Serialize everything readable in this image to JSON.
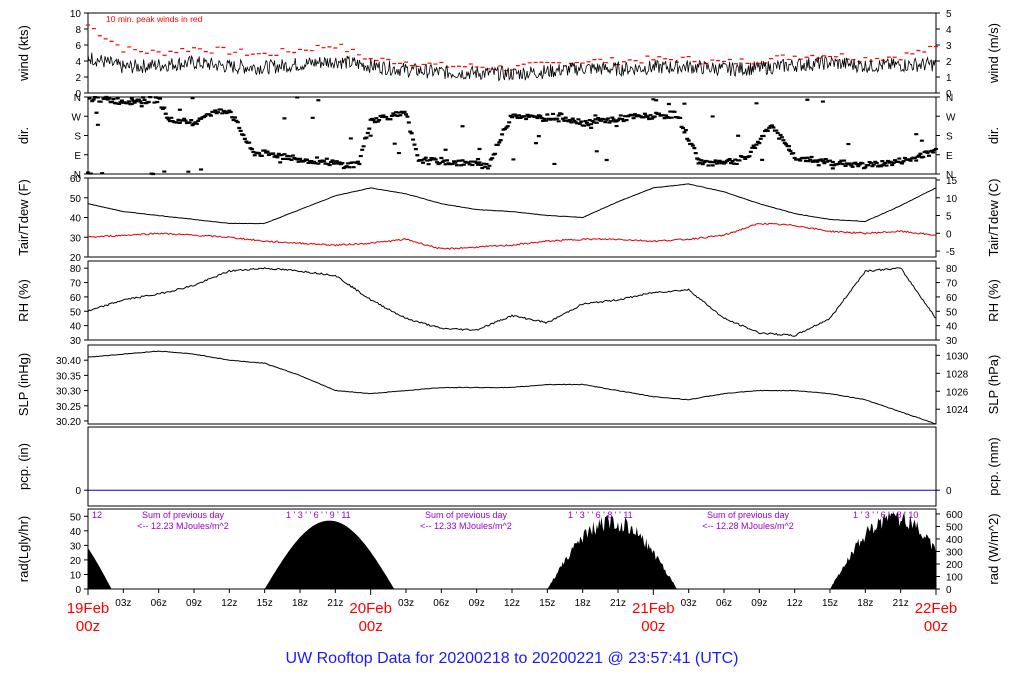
{
  "title": "UW Rooftop Data for 20200218  to  20200221 @ 23:57:41  (UTC)",
  "colors": {
    "peak": "#ff0000",
    "dew": "#e00000",
    "precip": "#0000cc",
    "purple": "#9900cc",
    "axisRed": "#ff0000",
    "title": "#1a1aff"
  },
  "x_axis": {
    "hour_ticks": [
      "03z",
      "06z",
      "09z",
      "12z",
      "15z",
      "18z",
      "21z"
    ],
    "day_labels": [
      {
        "date": "19Feb",
        "hour": "00z"
      },
      {
        "date": "20Feb",
        "hour": "00z"
      },
      {
        "date": "21Feb",
        "hour": "00z"
      },
      {
        "date": "22Feb",
        "hour": "00z"
      }
    ]
  },
  "chart_data": [
    {
      "type": "line",
      "panel": "wind",
      "ylabel_left": "wind (kts)",
      "ylabel_right": "wind (m/s)",
      "left_ticks": [
        "0",
        "2",
        "4",
        "6",
        "8",
        "10"
      ],
      "right_ticks": [
        "0",
        "1",
        "2",
        "3",
        "4",
        "5"
      ],
      "ylim": [
        0,
        10
      ],
      "annotation": "10 min. peak winds in red",
      "series": [
        {
          "x": [
            0,
            3,
            6,
            9,
            12,
            15,
            18,
            21,
            24,
            27,
            30,
            33,
            36,
            39,
            42,
            45,
            48,
            51,
            54,
            57,
            60,
            63,
            66,
            69,
            72
          ],
          "y": [
            4.5,
            3.2,
            3.5,
            3.8,
            3.3,
            3.2,
            3.6,
            4.0,
            3.4,
            2.9,
            2.6,
            2.5,
            2.4,
            2.7,
            3.1,
            3.0,
            3.2,
            3.3,
            3.0,
            3.1,
            3.5,
            3.8,
            3.4,
            3.5,
            3.6
          ]
        },
        {
          "x": [
            0,
            3,
            6,
            9,
            12,
            15,
            18,
            21,
            24,
            27,
            30,
            33,
            36,
            39,
            42,
            45,
            48,
            51,
            54,
            57,
            60,
            63,
            66,
            69,
            72
          ],
          "y": [
            8.5,
            5.5,
            5.0,
            5.6,
            5.2,
            4.8,
            5.4,
            6.0,
            4.2,
            3.9,
            3.4,
            3.3,
            3.1,
            3.6,
            4.0,
            4.0,
            4.2,
            4.2,
            3.8,
            4.1,
            4.6,
            4.8,
            4.3,
            4.6,
            5.6
          ]
        }
      ]
    },
    {
      "type": "scatter",
      "panel": "dir",
      "ylabel_left": "dir.",
      "ylabel_right": "dir.",
      "left_ticks": [
        "N",
        "E",
        "S",
        "W",
        "N"
      ],
      "right_ticks": [
        "N",
        "E",
        "S",
        "W",
        "N"
      ],
      "ylim": [
        0,
        360
      ],
      "x": [
        0,
        3,
        5,
        6,
        7,
        9,
        10,
        12,
        14,
        16,
        18,
        20,
        22,
        23,
        24,
        25,
        27,
        28,
        29,
        30,
        32,
        34,
        36,
        38,
        40,
        42,
        44,
        46,
        48,
        50,
        52,
        54,
        55,
        56,
        58,
        60,
        62,
        64,
        66,
        68,
        70,
        72
      ],
      "y": [
        355,
        340,
        345,
        350,
        250,
        240,
        280,
        300,
        100,
        90,
        70,
        60,
        40,
        50,
        250,
        265,
        280,
        70,
        60,
        60,
        50,
        40,
        280,
        260,
        270,
        240,
        250,
        265,
        270,
        280,
        50,
        60,
        60,
        80,
        230,
        80,
        60,
        50,
        40,
        50,
        70,
        110
      ]
    },
    {
      "type": "line",
      "panel": "temp",
      "ylabel_left": "Tair/Tdew (F)",
      "ylabel_right": "Tair/Tdew (C)",
      "left_ticks": [
        "20",
        "30",
        "40",
        "50",
        "60"
      ],
      "right_ticks": [
        "-5",
        "0",
        "5",
        "10",
        "15"
      ],
      "ylim": [
        20,
        60
      ],
      "series": [
        {
          "x": [
            0,
            3,
            6,
            9,
            12,
            15,
            18,
            21,
            24,
            27,
            30,
            33,
            36,
            39,
            42,
            45,
            48,
            51,
            54,
            57,
            60,
            63,
            66,
            69,
            72
          ],
          "y": [
            47,
            43,
            41,
            39,
            37,
            37,
            44,
            51,
            55,
            52,
            47,
            44,
            43,
            41,
            40,
            48,
            55,
            57,
            53,
            47,
            42,
            39,
            38,
            46,
            55
          ]
        },
        {
          "x": [
            0,
            3,
            6,
            9,
            12,
            15,
            18,
            21,
            24,
            27,
            30,
            33,
            36,
            39,
            42,
            45,
            48,
            51,
            54,
            57,
            60,
            63,
            66,
            69,
            72
          ],
          "y": [
            30,
            31,
            32,
            31,
            30,
            28,
            27,
            26,
            27,
            29,
            24,
            25,
            26,
            28,
            29,
            29,
            28,
            29,
            31,
            37,
            36,
            33,
            32,
            33,
            31
          ]
        }
      ]
    },
    {
      "type": "line",
      "panel": "rh",
      "ylabel_left": "RH (%)",
      "ylabel_right": "RH (%)",
      "left_ticks": [
        "30",
        "40",
        "50",
        "60",
        "70",
        "80"
      ],
      "right_ticks": [
        "30",
        "40",
        "50",
        "60",
        "70",
        "80"
      ],
      "ylim": [
        30,
        85
      ],
      "series": [
        {
          "x": [
            0,
            3,
            6,
            9,
            12,
            15,
            18,
            21,
            24,
            27,
            30,
            33,
            36,
            39,
            42,
            45,
            48,
            51,
            54,
            57,
            60,
            63,
            66,
            69,
            72
          ],
          "y": [
            50,
            58,
            62,
            68,
            78,
            80,
            78,
            75,
            58,
            45,
            38,
            37,
            47,
            42,
            55,
            58,
            63,
            65,
            45,
            35,
            33,
            45,
            78,
            80,
            45
          ]
        }
      ]
    },
    {
      "type": "line",
      "panel": "slp",
      "ylabel_left": "SLP (inHg)",
      "ylabel_right": "SLP (hPa)",
      "left_ticks": [
        "30.20",
        "30.25",
        "30.30",
        "30.35",
        "30.40"
      ],
      "right_ticks": [
        "1024",
        "1026",
        "1028",
        "1030"
      ],
      "ylim": [
        30.19,
        30.45
      ],
      "series": [
        {
          "x": [
            0,
            3,
            6,
            9,
            12,
            15,
            18,
            21,
            24,
            27,
            30,
            33,
            36,
            39,
            42,
            45,
            48,
            51,
            54,
            57,
            60,
            63,
            66,
            69,
            72
          ],
          "y": [
            30.41,
            30.42,
            30.43,
            30.42,
            30.4,
            30.39,
            30.35,
            30.3,
            30.29,
            30.3,
            30.31,
            30.31,
            30.31,
            30.32,
            30.32,
            30.3,
            30.28,
            30.27,
            30.29,
            30.3,
            30.3,
            30.29,
            30.27,
            30.23,
            30.19
          ]
        }
      ]
    },
    {
      "type": "line",
      "panel": "pcp",
      "ylabel_left": "pcp. (in)",
      "ylabel_right": "pcp. (mm)",
      "left_ticks": [
        "0"
      ],
      "right_ticks": [
        "0"
      ],
      "ylim": [
        -0.1,
        0.4
      ],
      "series": [
        {
          "x": [
            0,
            72
          ],
          "y": [
            0,
            0
          ]
        }
      ]
    },
    {
      "type": "area",
      "panel": "rad",
      "ylabel_left": "rad(Lgly/hr)",
      "ylabel_right": "rad (W/m^2)",
      "left_ticks": [
        "0",
        "10",
        "20",
        "30",
        "40",
        "50"
      ],
      "right_ticks": [
        "0",
        "100",
        "200",
        "300",
        "400",
        "500",
        "600"
      ],
      "ylim": [
        0,
        55
      ],
      "annotations": [
        {
          "hours": "12",
          "sum": "",
          "mj": ""
        },
        {
          "hours": "1 ' 3 ' ' 6 ' ' 9 ' 11",
          "sum": "Sum of previous day",
          "mj": "<-- 12.23 MJoules/m^2"
        },
        {
          "hours": "1 ' 3 ' ' 6 ' 8 ' ' 11",
          "sum": "Sum of previous day",
          "mj": "<-- 12.33 MJoules/m^2"
        },
        {
          "hours": "1 ' 3 ' ' 6 ' ' 8 ' 10",
          "sum": "Sum of previous day",
          "mj": "<-- 12.28 MJoules/m^2"
        }
      ],
      "days": [
        {
          "start": -8,
          "end": 2,
          "peak": 48
        },
        {
          "start": 15,
          "end": 26,
          "peak": 47
        },
        {
          "start": 39,
          "end": 50,
          "peak": 52
        },
        {
          "start": 63,
          "end": 74,
          "peak": 55
        }
      ]
    }
  ]
}
